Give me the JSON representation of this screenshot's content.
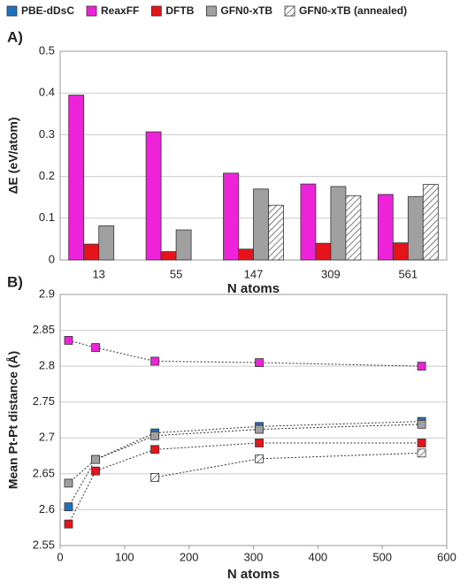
{
  "chart_data": [
    {
      "type": "bar",
      "label": "A)",
      "ylabel": "ΔE (eV/atom)",
      "xlabel": "N atoms",
      "categories": [
        "13",
        "55",
        "147",
        "309",
        "561"
      ],
      "ylim": [
        0,
        0.5
      ],
      "yticks": [
        0,
        0.1,
        0.2,
        0.3,
        0.4,
        0.5
      ],
      "grid": true,
      "legend": "top",
      "series": [
        {
          "name": "PBE-dDsC",
          "color": "#1f6fbf",
          "values": [
            null,
            null,
            null,
            null,
            null
          ]
        },
        {
          "name": "ReaxFF",
          "color": "#ee22d8",
          "values": [
            0.395,
            0.307,
            0.208,
            0.182,
            0.157
          ]
        },
        {
          "name": "DFTB",
          "color": "#e8121b",
          "values": [
            0.038,
            0.02,
            0.026,
            0.04,
            0.041
          ]
        },
        {
          "name": "GFN0-xTB",
          "color": "#a0a0a0",
          "values": [
            0.082,
            0.072,
            0.17,
            0.176,
            0.152
          ]
        },
        {
          "name": "GFN0-xTB (annealed)",
          "color": "#ffffff",
          "fill_pattern": "diagonal-hatch",
          "values": [
            null,
            null,
            0.131,
            0.154,
            0.181
          ]
        }
      ]
    },
    {
      "type": "line",
      "label": "B)",
      "ylabel": "Mean Pt-Pt distance (Å)",
      "xlabel": "N atoms",
      "x": [
        13,
        55,
        147,
        309,
        561
      ],
      "xlim": [
        0,
        600
      ],
      "xticks": [
        0,
        100,
        200,
        300,
        400,
        500,
        600
      ],
      "ylim": [
        2.55,
        2.9
      ],
      "yticks": [
        2.55,
        2.6,
        2.65,
        2.7,
        2.75,
        2.8,
        2.85,
        2.9
      ],
      "grid": true,
      "series": [
        {
          "color": "#1f6fbf",
          "values": [
            2.604,
            2.67,
            2.707,
            2.716,
            2.723
          ]
        },
        {
          "color": "#ee22d8",
          "values": [
            2.836,
            2.826,
            2.807,
            2.805,
            2.8
          ]
        },
        {
          "color": "#e8121b",
          "values": [
            2.58,
            2.654,
            2.684,
            2.693,
            2.693
          ]
        },
        {
          "color": "#a0a0a0",
          "values": [
            2.637,
            2.67,
            2.703,
            2.712,
            2.719
          ]
        },
        {
          "color": "#ffffff",
          "fill_pattern": "diagonal-hatch",
          "values": [
            null,
            null,
            2.645,
            2.671,
            2.679
          ]
        }
      ]
    }
  ]
}
